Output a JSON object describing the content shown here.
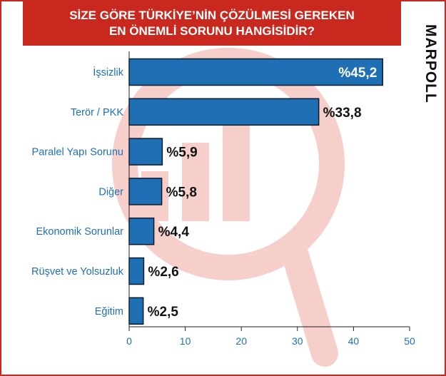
{
  "title": {
    "line1": "SİZE GÖRE TÜRKİYE’NİN ÇÖZÜLMESİ GEREKEN",
    "line2": "EN ÖNEMLİ SORUNU HANGİSİDİR?"
  },
  "brand": {
    "logo_text": "MARPOLL",
    "accent_color": "#c8281e",
    "bar_color": "#1f6fb5"
  },
  "chart_data": {
    "type": "bar",
    "orientation": "horizontal",
    "title": "SİZE GÖRE TÜRKİYE’NİN ÇÖZÜLMESİ GEREKEN EN ÖNEMLİ SORUNU HANGİSİDİR?",
    "categories": [
      "İşsizlik",
      "Terör / PKK",
      "Paralel Yapı Sorunu",
      "Diğer",
      "Ekonomik Sorunlar",
      "Rüşvet ve Yolsuzluk",
      "Eğitim"
    ],
    "values": [
      45.2,
      33.8,
      5.9,
      5.8,
      4.4,
      2.6,
      2.5
    ],
    "value_labels": [
      "%45,2",
      "%33,8",
      "%5,9",
      "%5,8",
      "%4,4",
      "%2,6",
      "%2,5"
    ],
    "xlim": [
      0,
      50
    ],
    "xticks": [
      0,
      10,
      20,
      30,
      40,
      50
    ],
    "xtick_labels": [
      "0",
      "10",
      "20",
      "30",
      "40",
      "50"
    ],
    "grid": false,
    "legend": "none"
  }
}
